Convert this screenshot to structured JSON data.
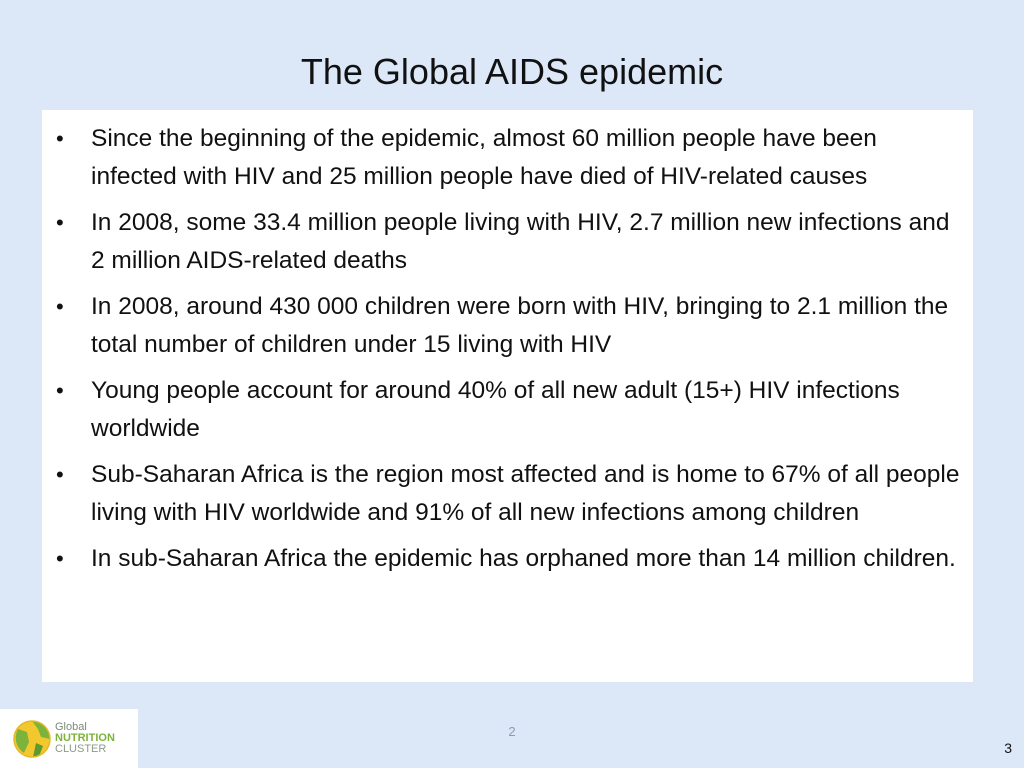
{
  "slide": {
    "title": "The Global AIDS epidemic",
    "bullets": [
      "Since the beginning of the epidemic, almost 60 million people have been infected with HIV and 25 million people have died of HIV-related causes",
      "In 2008, some 33.4 million people living with HIV, 2.7 million new infections and 2 million AIDS-related deaths",
      "In 2008, around 430 000 children were born with HIV, bringing to 2.1 million the total number of children under 15 living with HIV",
      "Young people account for around 40% of all new adult (15+) HIV infections worldwide",
      "Sub-Saharan Africa is the region most affected and is home to 67% of all people living with HIV worldwide and 91% of all new infections among children",
      "In sub-Saharan Africa the epidemic has orphaned more than 14 million children."
    ],
    "bullet_symbol": "•"
  },
  "logo": {
    "line1": "Global",
    "line2": "NUTRITION",
    "line3": "CLUSTER",
    "icon": "globe-icon"
  },
  "footer": {
    "page_center": "2",
    "page_right": "3"
  },
  "colors": {
    "background": "#dce8f7",
    "content_box": "#ffffff",
    "logo_green": "#7db33a"
  }
}
